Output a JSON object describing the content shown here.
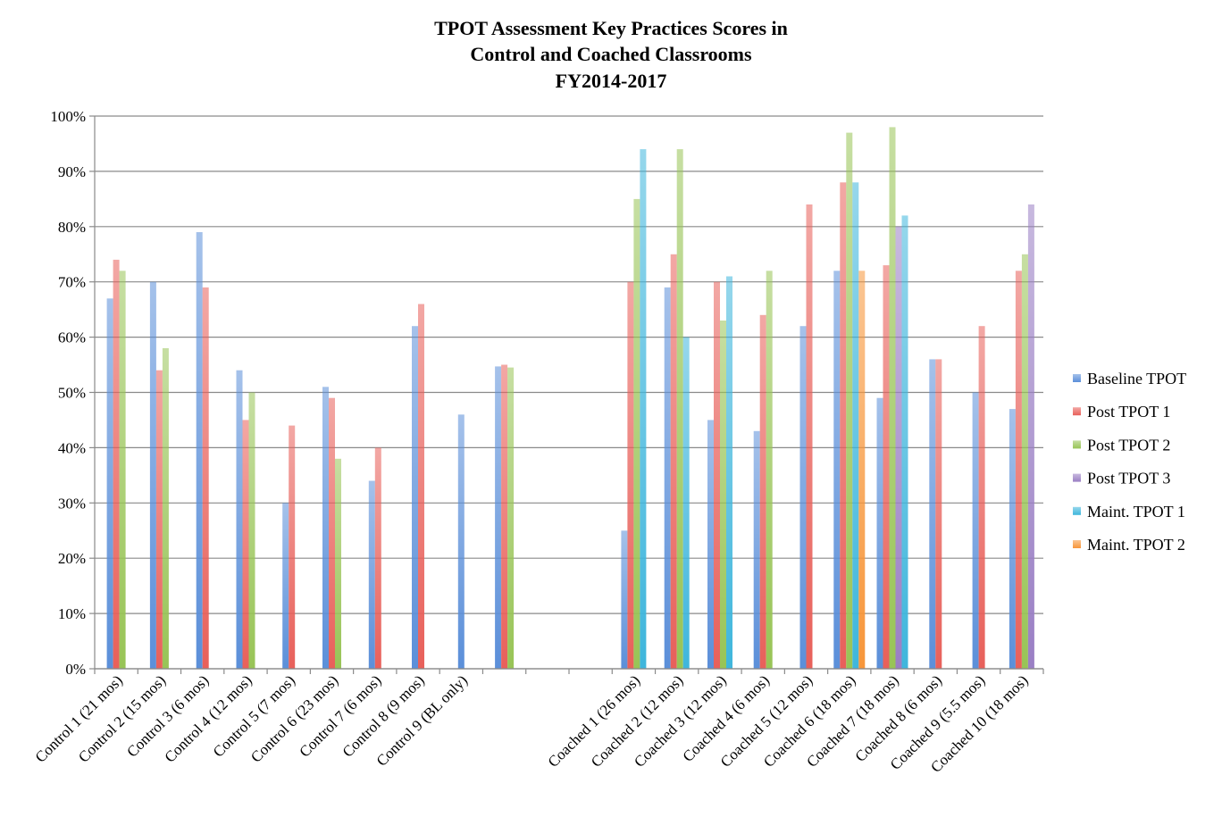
{
  "chart_data": {
    "type": "bar",
    "title": [
      "TPOT Assessment  Key Practices Scores in",
      "Control and Coached Classrooms",
      "FY2014-2017"
    ],
    "xlabel": "",
    "ylabel": "",
    "ylim": [
      0,
      100
    ],
    "y_ticks": [
      "0%",
      "10%",
      "20%",
      "30%",
      "40%",
      "50%",
      "60%",
      "70%",
      "80%",
      "90%",
      "100%"
    ],
    "grid": true,
    "legend_position": "right",
    "categories": [
      "Control 1 (21 mos)",
      "Control 2 (15 mos)",
      "Control 3 (6 mos)",
      "Control 4 (12 mos)",
      "Control 5 (7 mos)",
      "Control 6 (23 mos)",
      "Control 7 (6 mos)",
      "Control 8 (9 mos)",
      "Control 9 (BL only)",
      "",
      "",
      "",
      "Coached 1 (26 mos)",
      "Coached 2 (12 mos)",
      "Coached 3 (12 mos)",
      "Coached 4 (6 mos)",
      "Coached 5 (12 mos)",
      "Coached 6 (18 mos)",
      "Coached 7 (18 mos)",
      "Coached 8 (6 mos)",
      "Coached 9 (5.5 mos)",
      "Coached 10 (18 mos)"
    ],
    "series": [
      {
        "name": "Baseline TPOT",
        "color": "#5b8fd9",
        "values": [
          67,
          70,
          79,
          54,
          30,
          51,
          34,
          62,
          46,
          54.7,
          null,
          null,
          25,
          69,
          45,
          43,
          62,
          72,
          49,
          56,
          50,
          47
        ]
      },
      {
        "name": "Post TPOT 1",
        "color": "#e8605a",
        "values": [
          74,
          54,
          69,
          45,
          44,
          49,
          40,
          66,
          null,
          55,
          null,
          null,
          70,
          75,
          70,
          64,
          84,
          88,
          73,
          56,
          62,
          72
        ]
      },
      {
        "name": "Post TPOT 2",
        "color": "#98c456",
        "values": [
          72,
          58,
          null,
          50,
          null,
          38,
          null,
          null,
          null,
          54.5,
          null,
          null,
          85,
          94,
          63,
          72,
          null,
          97,
          98,
          null,
          null,
          75
        ]
      },
      {
        "name": "Post TPOT 3",
        "color": "#9a7fc4",
        "values": [
          null,
          null,
          null,
          null,
          null,
          null,
          null,
          null,
          null,
          null,
          null,
          null,
          null,
          null,
          null,
          null,
          null,
          null,
          80,
          null,
          null,
          84
        ]
      },
      {
        "name": "Maint. TPOT 1",
        "color": "#3fb6dc",
        "values": [
          null,
          null,
          null,
          null,
          null,
          null,
          null,
          null,
          null,
          null,
          null,
          null,
          94,
          60,
          71,
          null,
          null,
          88,
          82,
          null,
          null,
          null
        ]
      },
      {
        "name": "Maint. TPOT 2",
        "color": "#f7963a",
        "values": [
          null,
          null,
          null,
          null,
          null,
          null,
          null,
          null,
          null,
          null,
          null,
          null,
          null,
          null,
          null,
          null,
          null,
          72,
          null,
          null,
          null,
          null
        ]
      }
    ]
  }
}
